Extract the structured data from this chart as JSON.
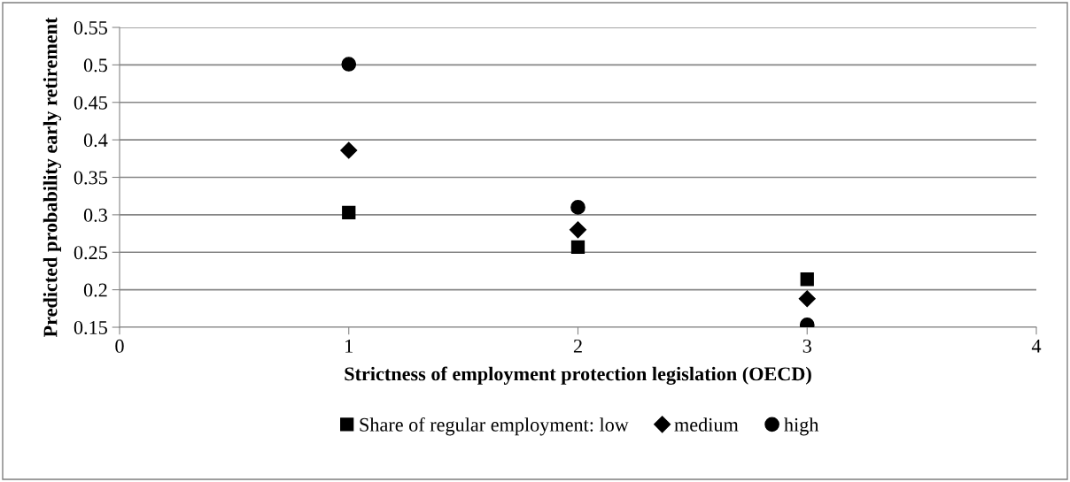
{
  "chart_data": {
    "type": "scatter",
    "xlabel": "Strictness of employment protection legislation (OECD)",
    "ylabel": "Predicted probability early retirement",
    "x": [
      1,
      2,
      3
    ],
    "series": [
      {
        "name": "Share of regular employment: low",
        "color": "#000000",
        "marker": "square",
        "values": [
          0.303,
          0.257,
          0.214
        ]
      },
      {
        "name": "medium",
        "color": "#000000",
        "marker": "diamond",
        "values": [
          0.386,
          0.28,
          0.188
        ]
      },
      {
        "name": "high",
        "color": "#000000",
        "marker": "circle",
        "values": [
          0.501,
          0.31,
          0.153
        ]
      }
    ],
    "xlim": [
      0,
      4
    ],
    "xticks": [
      0,
      1,
      2,
      3,
      4
    ],
    "ylim": [
      0.15,
      0.55
    ],
    "yticks": [
      0.15,
      0.2,
      0.25,
      0.3,
      0.35,
      0.4,
      0.45,
      0.5,
      0.55
    ],
    "grid": "y",
    "legend": "bottom"
  }
}
